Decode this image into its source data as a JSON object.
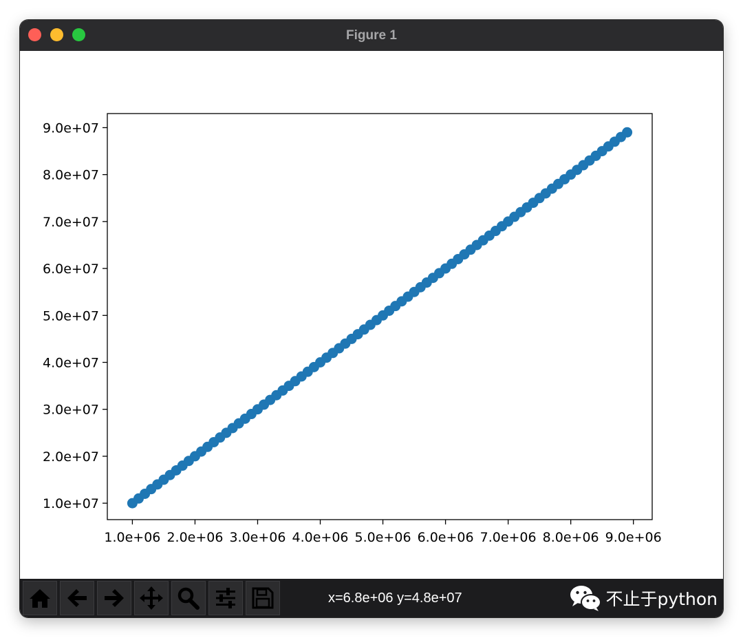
{
  "window": {
    "title": "Figure 1"
  },
  "toolbar": {
    "buttons": [
      {
        "name": "home-button",
        "icon": "home-icon"
      },
      {
        "name": "back-button",
        "icon": "arrow-left-icon"
      },
      {
        "name": "forward-button",
        "icon": "arrow-right-icon"
      },
      {
        "name": "pan-button",
        "icon": "move-icon"
      },
      {
        "name": "zoom-button",
        "icon": "magnifier-icon"
      },
      {
        "name": "configure-subplots-button",
        "icon": "sliders-icon"
      },
      {
        "name": "save-button",
        "icon": "floppy-disk-icon"
      }
    ],
    "coords": "x=6.8e+06 y=4.8e+07"
  },
  "watermark": {
    "text": "不止于python",
    "icon": "wechat-icon"
  },
  "chart_data": {
    "type": "line",
    "title": "",
    "xlabel": "",
    "ylabel": "",
    "marker": "circle",
    "color": "#1f77b4",
    "grid": false,
    "xlim": [
      600000,
      9300000
    ],
    "ylim": [
      6500000,
      93000000
    ],
    "x_ticks": [
      1000000,
      2000000,
      3000000,
      4000000,
      5000000,
      6000000,
      7000000,
      8000000,
      9000000
    ],
    "x_tick_labels": [
      "1.0e+06",
      "2.0e+06",
      "3.0e+06",
      "4.0e+06",
      "5.0e+06",
      "6.0e+06",
      "7.0e+06",
      "8.0e+06",
      "9.0e+06"
    ],
    "y_ticks": [
      10000000,
      20000000,
      30000000,
      40000000,
      50000000,
      60000000,
      70000000,
      80000000,
      90000000
    ],
    "y_tick_labels": [
      "1.0e+07",
      "2.0e+07",
      "3.0e+07",
      "4.0e+07",
      "5.0e+07",
      "6.0e+07",
      "7.0e+07",
      "8.0e+07",
      "9.0e+07"
    ],
    "series": [
      {
        "x_start": 1000000,
        "x_step": 100000,
        "count": 80,
        "slope": 10,
        "x_end": 8900000,
        "y_start": 10000000,
        "y_end": 89000000
      }
    ]
  }
}
